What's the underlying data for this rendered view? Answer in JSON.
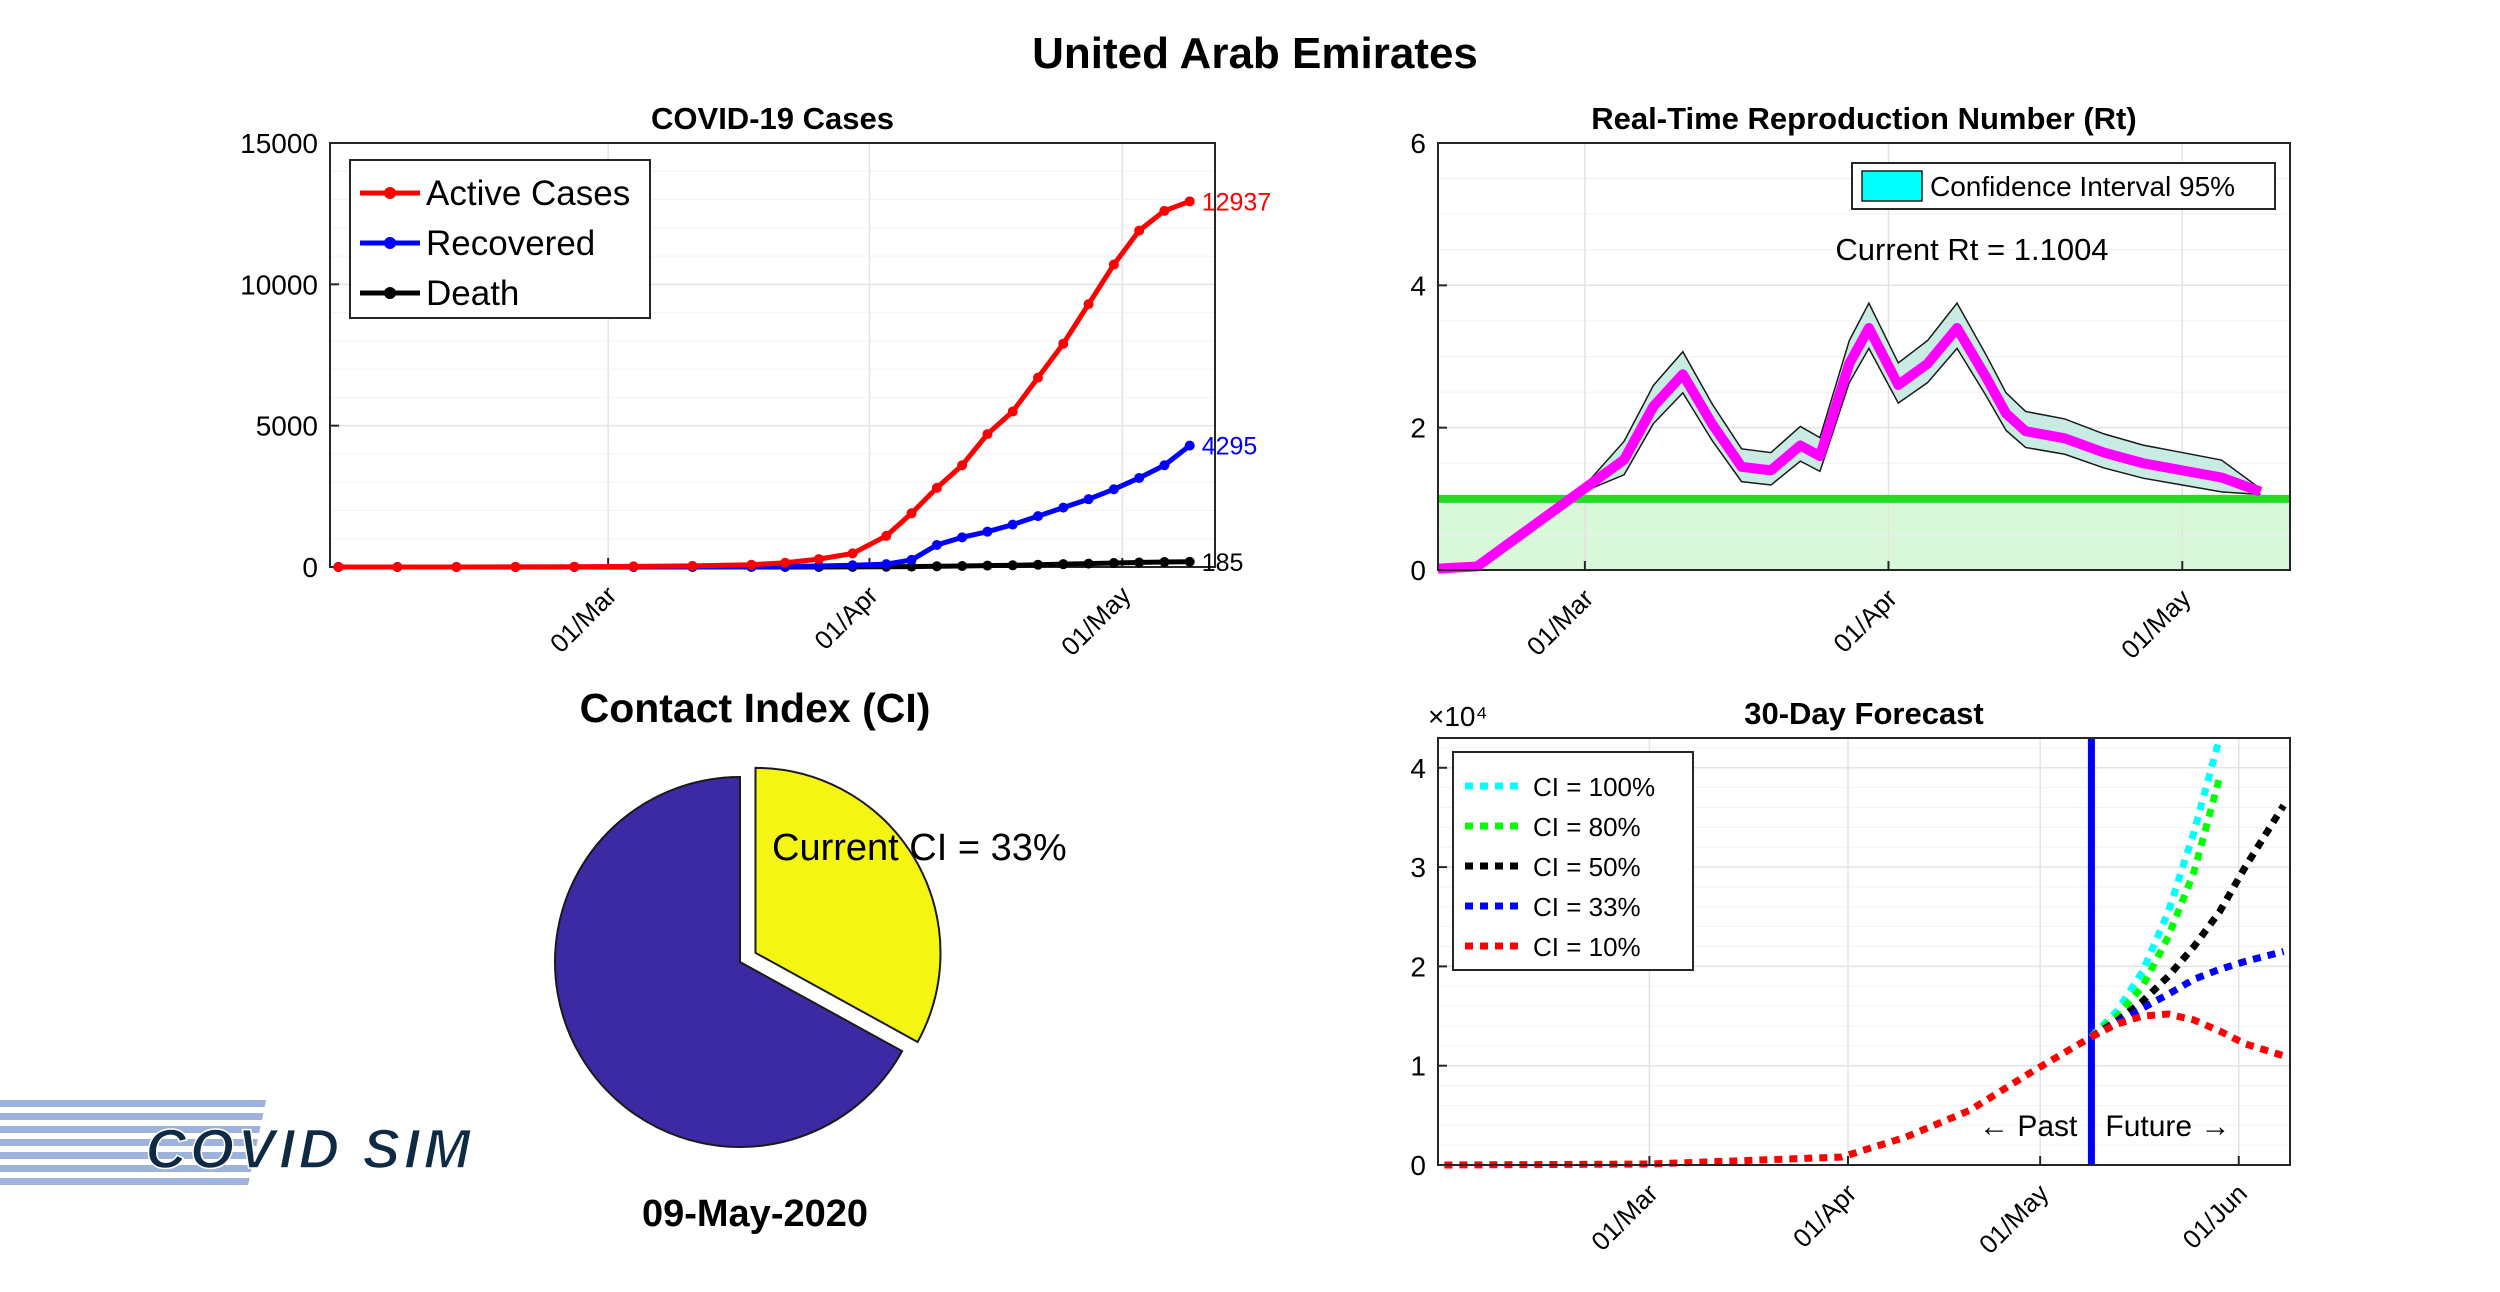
{
  "figure": {
    "title": "United Arab Emirates",
    "date_label": "09-May-2020",
    "logo_text": "COVID SIM"
  },
  "chart_data": [
    {
      "id": "cases",
      "type": "line",
      "title": "COVID-19 Cases",
      "xlabel": "",
      "ylabel": "",
      "ylim": [
        0,
        15000
      ],
      "yticks": [
        0,
        5000,
        10000,
        15000
      ],
      "x_tick_labels": [
        "01/Mar",
        "01/Apr",
        "01/May"
      ],
      "x_dates": [
        "2020-01-29",
        "2020-02-05",
        "2020-02-12",
        "2020-02-19",
        "2020-02-26",
        "2020-03-04",
        "2020-03-11",
        "2020-03-18",
        "2020-03-22",
        "2020-03-26",
        "2020-03-30",
        "2020-04-03",
        "2020-04-06",
        "2020-04-09",
        "2020-04-12",
        "2020-04-15",
        "2020-04-18",
        "2020-04-21",
        "2020-04-24",
        "2020-04-27",
        "2020-04-30",
        "2020-05-03",
        "2020-05-06",
        "2020-05-09"
      ],
      "grid": true,
      "legend": "top-left",
      "series": [
        {
          "name": "Active Cases",
          "color": "#ff0000",
          "end_label": "12937",
          "values": [
            0,
            0,
            2,
            5,
            10,
            20,
            40,
            80,
            150,
            280,
            480,
            1100,
            1900,
            2800,
            3600,
            4700,
            5500,
            6700,
            7900,
            9300,
            10700,
            11900,
            12600,
            12937
          ]
        },
        {
          "name": "Recovered",
          "color": "#0000ff",
          "end_label": "4295",
          "values": [
            0,
            0,
            0,
            1,
            2,
            4,
            6,
            10,
            20,
            35,
            60,
            100,
            250,
            780,
            1050,
            1250,
            1500,
            1800,
            2100,
            2400,
            2750,
            3150,
            3600,
            4295
          ]
        },
        {
          "name": "Death",
          "color": "#000000",
          "end_label": "185",
          "values": [
            0,
            0,
            0,
            0,
            0,
            0,
            0,
            0,
            1,
            2,
            5,
            10,
            15,
            25,
            35,
            50,
            60,
            80,
            100,
            120,
            140,
            160,
            175,
            185
          ]
        }
      ]
    },
    {
      "id": "rt",
      "type": "line",
      "title": "Real-Time Reproduction Number (Rt)",
      "xlabel": "",
      "ylabel": "",
      "ylim": [
        0,
        6
      ],
      "yticks": [
        0,
        2,
        4,
        6
      ],
      "x_tick_labels": [
        "01/Mar",
        "01/Apr",
        "01/May"
      ],
      "grid": true,
      "legend": "top-right",
      "annotation": "Current Rt = 1.1004",
      "threshold": 1,
      "series": [
        {
          "name": "Confidence Interval 95%",
          "color": "#00ffff",
          "band": true
        },
        {
          "name": "Rt",
          "color": "#ff00ff",
          "x_dates": [
            "2020-02-15",
            "2020-02-19",
            "2020-02-22",
            "2020-02-25",
            "2020-03-01",
            "2020-03-05",
            "2020-03-08",
            "2020-03-11",
            "2020-03-14",
            "2020-03-17",
            "2020-03-20",
            "2020-03-23",
            "2020-03-25",
            "2020-03-28",
            "2020-03-30",
            "2020-04-02",
            "2020-04-05",
            "2020-04-08",
            "2020-04-11",
            "2020-04-13",
            "2020-04-15",
            "2020-04-19",
            "2020-04-23",
            "2020-04-27",
            "2020-05-01",
            "2020-05-05",
            "2020-05-09"
          ],
          "values": [
            0.02,
            0.05,
            0.35,
            0.65,
            1.15,
            1.55,
            2.3,
            2.75,
            2.05,
            1.45,
            1.4,
            1.75,
            1.6,
            2.9,
            3.4,
            2.6,
            2.9,
            3.4,
            2.7,
            2.2,
            1.95,
            1.85,
            1.65,
            1.5,
            1.4,
            1.3,
            1.1004
          ]
        }
      ]
    },
    {
      "id": "contact",
      "type": "pie",
      "title": "Contact Index (CI)",
      "slices": [
        {
          "label": "Current CI = 33%",
          "value": 33,
          "color": "#f5f514",
          "exploded": true
        },
        {
          "label": "",
          "value": 67,
          "color": "#3b2aa3"
        }
      ]
    },
    {
      "id": "forecast",
      "type": "line",
      "title": "30-Day Forecast",
      "xlabel": "",
      "ylabel": "",
      "y_multiplier": "×10⁴",
      "ylim": [
        0,
        4.3
      ],
      "yticks": [
        0,
        1,
        2,
        3,
        4
      ],
      "x_tick_labels": [
        "01/Mar",
        "01/Apr",
        "01/May",
        "01/Jun"
      ],
      "grid": true,
      "legend": "top-left",
      "divider_labels": [
        "← Past",
        "Future →"
      ],
      "history_dates": [
        "2020-01-29",
        "2020-03-01",
        "2020-03-31",
        "2020-04-10",
        "2020-04-20",
        "2020-04-30",
        "2020-05-09"
      ],
      "history_values": [
        0,
        0.01,
        0.08,
        0.28,
        0.55,
        0.95,
        1.29
      ],
      "forecast_dates": [
        "2020-05-09",
        "2020-05-13",
        "2020-05-17",
        "2020-05-21",
        "2020-05-25",
        "2020-05-29",
        "2020-06-02",
        "2020-06-08"
      ],
      "series": [
        {
          "name": "CI = 100%",
          "color": "#00ffff",
          "values": [
            1.29,
            1.55,
            1.95,
            2.55,
            3.35,
            4.3,
            null,
            null
          ]
        },
        {
          "name": "CI = 80%",
          "color": "#00ff00",
          "values": [
            1.29,
            1.5,
            1.8,
            2.3,
            2.95,
            3.9,
            null,
            null
          ]
        },
        {
          "name": "CI = 50%",
          "color": "#000000",
          "values": [
            1.29,
            1.45,
            1.65,
            1.9,
            2.2,
            2.55,
            3.0,
            3.62
          ]
        },
        {
          "name": "CI = 33%",
          "color": "#0000ff",
          "values": [
            1.29,
            1.43,
            1.58,
            1.72,
            1.87,
            1.97,
            2.05,
            2.15
          ]
        },
        {
          "name": "CI = 10%",
          "color": "#ff0000",
          "values": [
            1.29,
            1.42,
            1.5,
            1.52,
            1.46,
            1.35,
            1.22,
            1.1
          ]
        }
      ]
    }
  ]
}
